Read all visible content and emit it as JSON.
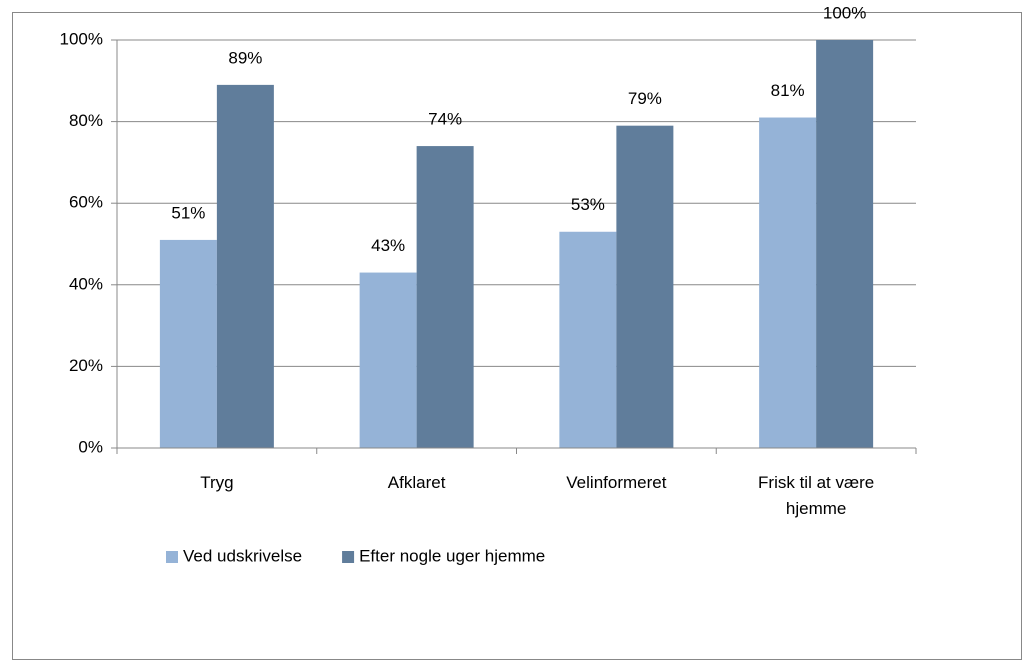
{
  "chart_data": {
    "type": "bar",
    "categories": [
      "Tryg",
      "Afklaret",
      "Velinformeret",
      "Frisk til at være hjemme"
    ],
    "series": [
      {
        "name": "Ved udskrivelse",
        "color": "#95b3d7",
        "values": [
          51,
          43,
          53,
          81
        ],
        "value_labels": [
          "51%",
          "43%",
          "53%",
          "81%"
        ]
      },
      {
        "name": "Efter nogle uger hjemme",
        "color": "#607d9b",
        "values": [
          89,
          74,
          79,
          100
        ],
        "value_labels": [
          "89%",
          "74%",
          "79%",
          "100%"
        ]
      }
    ],
    "ylim": [
      0,
      100
    ],
    "yticks": [
      {
        "value": 0,
        "label": "0%"
      },
      {
        "value": 20,
        "label": "20%"
      },
      {
        "value": 40,
        "label": "40%"
      },
      {
        "value": 60,
        "label": "60%"
      },
      {
        "value": 80,
        "label": "80%"
      },
      {
        "value": 100,
        "label": "100%"
      }
    ],
    "grid": true,
    "legend": "bottom"
  }
}
